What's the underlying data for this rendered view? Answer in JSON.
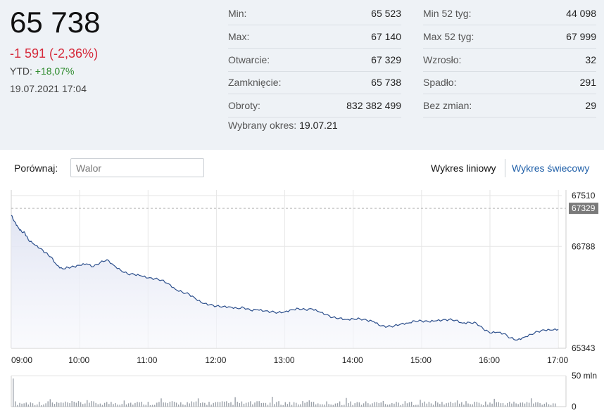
{
  "quote": {
    "price": "65 738",
    "change": "-1 591 (-2,36%)",
    "ytd_label": "YTD:",
    "ytd_value": "+18,07%",
    "datetime": "19.07.2021 17:04"
  },
  "stats_left": [
    {
      "label": "Min:",
      "value": "65 523"
    },
    {
      "label": "Max:",
      "value": "67 140"
    },
    {
      "label": "Otwarcie:",
      "value": "67 329"
    },
    {
      "label": "Zamknięcie:",
      "value": "65 738"
    },
    {
      "label": "Obroty:",
      "value": "832 382 499"
    }
  ],
  "stats_right": [
    {
      "label": "Min 52 tyg:",
      "value": "44 098"
    },
    {
      "label": "Max 52 tyg:",
      "value": "67 999"
    },
    {
      "label": "Wzrosło:",
      "value": "32"
    },
    {
      "label": "Spadło:",
      "value": "291"
    },
    {
      "label": "Bez zmian:",
      "value": "29"
    }
  ],
  "period": {
    "label": "Wybrany okres:",
    "value": "19.07.21"
  },
  "compare": {
    "label": "Porównaj:",
    "placeholder": "Walor"
  },
  "chart_tabs": {
    "line": "Wykres liniowy",
    "candle": "Wykres świecowy"
  },
  "colors": {
    "line": "#2c4f8c",
    "negative": "#d6293a",
    "positive": "#2e8b2e",
    "active_tab": "#1f5fa8"
  },
  "chart_data": {
    "type": "line",
    "x_ticks": [
      "09:00",
      "10:00",
      "11:00",
      "12:00",
      "13:00",
      "14:00",
      "15:00",
      "16:00",
      "17:00"
    ],
    "y_ticks": [
      "67510",
      "66788",
      "65343"
    ],
    "reference_label": "67329",
    "reference_value": 67329,
    "ylim": [
      65343,
      67510
    ],
    "x_range_hours": [
      9.0,
      17.05
    ],
    "series": [
      {
        "points": [
          [
            9.0,
            67229
          ],
          [
            9.05,
            67140
          ],
          [
            9.1,
            67060
          ],
          [
            9.15,
            67000
          ],
          [
            9.2,
            66980
          ],
          [
            9.25,
            66880
          ],
          [
            9.33,
            66820
          ],
          [
            9.42,
            66760
          ],
          [
            9.5,
            66700
          ],
          [
            9.58,
            66640
          ],
          [
            9.67,
            66520
          ],
          [
            9.75,
            66470
          ],
          [
            9.83,
            66490
          ],
          [
            9.92,
            66500
          ],
          [
            10.0,
            66520
          ],
          [
            10.1,
            66540
          ],
          [
            10.2,
            66500
          ],
          [
            10.3,
            66560
          ],
          [
            10.4,
            66600
          ],
          [
            10.5,
            66520
          ],
          [
            10.6,
            66450
          ],
          [
            10.7,
            66400
          ],
          [
            10.8,
            66390
          ],
          [
            10.9,
            66370
          ],
          [
            11.0,
            66340
          ],
          [
            11.1,
            66330
          ],
          [
            11.2,
            66310
          ],
          [
            11.3,
            66260
          ],
          [
            11.4,
            66180
          ],
          [
            11.5,
            66140
          ],
          [
            11.6,
            66110
          ],
          [
            11.7,
            66040
          ],
          [
            11.8,
            65980
          ],
          [
            11.9,
            65960
          ],
          [
            12.0,
            65940
          ],
          [
            12.1,
            65935
          ],
          [
            12.2,
            65930
          ],
          [
            12.3,
            65910
          ],
          [
            12.4,
            65920
          ],
          [
            12.5,
            65880
          ],
          [
            12.6,
            65890
          ],
          [
            12.7,
            65870
          ],
          [
            12.8,
            65860
          ],
          [
            12.9,
            65850
          ],
          [
            13.0,
            65860
          ],
          [
            13.1,
            65890
          ],
          [
            13.2,
            65905
          ],
          [
            13.3,
            65890
          ],
          [
            13.4,
            65900
          ],
          [
            13.5,
            65860
          ],
          [
            13.6,
            65820
          ],
          [
            13.7,
            65780
          ],
          [
            13.8,
            65770
          ],
          [
            13.9,
            65750
          ],
          [
            14.0,
            65760
          ],
          [
            14.1,
            65760
          ],
          [
            14.2,
            65740
          ],
          [
            14.3,
            65720
          ],
          [
            14.4,
            65660
          ],
          [
            14.5,
            65650
          ],
          [
            14.6,
            65660
          ],
          [
            14.7,
            65690
          ],
          [
            14.8,
            65700
          ],
          [
            14.9,
            65730
          ],
          [
            15.0,
            65730
          ],
          [
            15.1,
            65720
          ],
          [
            15.2,
            65730
          ],
          [
            15.3,
            65740
          ],
          [
            15.4,
            65750
          ],
          [
            15.5,
            65740
          ],
          [
            15.6,
            65700
          ],
          [
            15.7,
            65710
          ],
          [
            15.8,
            65700
          ],
          [
            15.9,
            65620
          ],
          [
            16.0,
            65560
          ],
          [
            16.1,
            65570
          ],
          [
            16.2,
            65550
          ],
          [
            16.3,
            65490
          ],
          [
            16.4,
            65460
          ],
          [
            16.5,
            65500
          ],
          [
            16.6,
            65540
          ],
          [
            16.7,
            65580
          ],
          [
            16.8,
            65600
          ],
          [
            16.9,
            65600
          ],
          [
            17.0,
            65610
          ]
        ]
      }
    ],
    "volume_ticks": [
      "50 mln",
      "0"
    ],
    "volume_max": 50
  }
}
